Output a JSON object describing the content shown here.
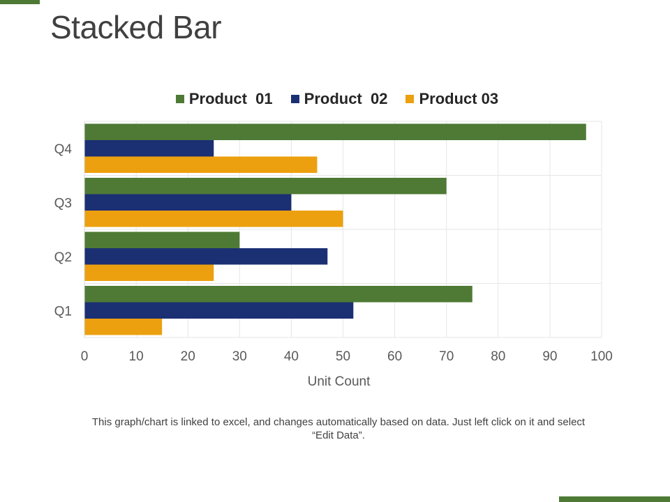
{
  "slide": {
    "title": "Stacked Bar",
    "footnote": "This graph/chart is linked to excel, and changes automatically based on data. Just left click on it and select “Edit Data”.",
    "accent_color": "#4e7a35"
  },
  "chart_data": {
    "type": "bar",
    "orientation": "horizontal",
    "categories": [
      "Q1",
      "Q2",
      "Q3",
      "Q4"
    ],
    "series": [
      {
        "name": "Product  01",
        "color": "#4e7a35",
        "values": [
          75,
          30,
          70,
          97
        ]
      },
      {
        "name": "Product  02",
        "color": "#1b2f73",
        "values": [
          52,
          47,
          40,
          25
        ]
      },
      {
        "name": "Product 03",
        "color": "#eca00f",
        "values": [
          15,
          25,
          50,
          45
        ]
      }
    ],
    "xlabel": "Unit Count",
    "ylabel": "",
    "xlim": [
      0,
      100
    ],
    "xticks": [
      "0",
      "10",
      "20",
      "30",
      "40",
      "50",
      "60",
      "70",
      "80",
      "90",
      "100"
    ],
    "grid": true,
    "legend_position": "top"
  }
}
